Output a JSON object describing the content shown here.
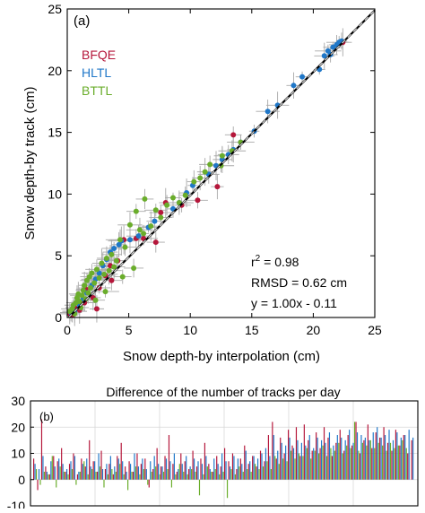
{
  "colors": {
    "BFQE": "#b5163a",
    "HLTL": "#1f77c8",
    "BTTL": "#6aad2b",
    "errorbar": "#a8a8a8",
    "fit": "#000000"
  },
  "chart_data": [
    {
      "type": "scatter",
      "panel_label": "(a)",
      "title": "",
      "xlabel": "Snow depth-by interpolation (cm)",
      "ylabel": "Snow depth-by track (cm)",
      "xlim": [
        0,
        25
      ],
      "ylim": [
        0,
        25
      ],
      "xticks": [
        0,
        5,
        10,
        15,
        20,
        25
      ],
      "yticks": [
        0,
        5,
        10,
        15,
        20,
        25
      ],
      "grid": false,
      "legend_position": "top-left",
      "fit_line": {
        "slope": 1.0,
        "intercept": -0.11,
        "style": "dashed black over solid black"
      },
      "stats": {
        "r2_prefix": "r",
        "r2_exp": "2",
        "r2_value": " = 0.98",
        "rmsd": "RMSD = 0.62 cm",
        "equation": "y = 1.00x - 0.11"
      },
      "series": [
        {
          "name": "BFQE",
          "color": "#b5163a",
          "points": [
            [
              0.2,
              0.3
            ],
            [
              0.4,
              0.2
            ],
            [
              0.6,
              0.8
            ],
            [
              1.0,
              0.6
            ],
            [
              1.4,
              1.2
            ],
            [
              2.1,
              1.6
            ],
            [
              2.6,
              2.4
            ],
            [
              3.1,
              3.4
            ],
            [
              3.5,
              4.2
            ],
            [
              3.6,
              3.0
            ],
            [
              4.1,
              4.6
            ],
            [
              4.6,
              6.3
            ],
            [
              5.6,
              6.4
            ],
            [
              6.2,
              6.4
            ],
            [
              7.2,
              6.1
            ],
            [
              7.6,
              8.5
            ],
            [
              8.0,
              9.3
            ],
            [
              9.3,
              9.1
            ],
            [
              10.6,
              9.5
            ],
            [
              12.2,
              10.6
            ],
            [
              13.5,
              14.8
            ],
            [
              22.4,
              22.3
            ],
            [
              2.4,
              0.7
            ],
            [
              1.5,
              2.3
            ]
          ]
        },
        {
          "name": "HLTL",
          "color": "#1f77c8",
          "points": [
            [
              0.3,
              0.4
            ],
            [
              0.6,
              0.5
            ],
            [
              1.0,
              1.0
            ],
            [
              1.3,
              1.5
            ],
            [
              1.6,
              2.0
            ],
            [
              2.0,
              2.6
            ],
            [
              2.3,
              3.1
            ],
            [
              2.6,
              3.6
            ],
            [
              2.9,
              4.2
            ],
            [
              3.2,
              4.7
            ],
            [
              3.5,
              5.3
            ],
            [
              3.8,
              5.6
            ],
            [
              4.2,
              5.9
            ],
            [
              4.4,
              6.2
            ],
            [
              5.1,
              6.3
            ],
            [
              5.8,
              6.6
            ],
            [
              6.6,
              7.3
            ],
            [
              7.1,
              7.8
            ],
            [
              8.6,
              8.8
            ],
            [
              9.1,
              9.3
            ],
            [
              9.7,
              10.1
            ],
            [
              10.2,
              10.7
            ],
            [
              11.5,
              11.6
            ],
            [
              12.1,
              12.3
            ],
            [
              12.6,
              12.8
            ],
            [
              13.1,
              13.2
            ],
            [
              13.5,
              13.6
            ],
            [
              14.1,
              14.2
            ],
            [
              15.2,
              15.1
            ],
            [
              16.3,
              16.7
            ],
            [
              17.1,
              17.2
            ],
            [
              18.4,
              18.8
            ],
            [
              19.1,
              19.5
            ],
            [
              20.5,
              20.1
            ],
            [
              20.9,
              21.2
            ],
            [
              21.2,
              21.6
            ],
            [
              21.6,
              21.9
            ],
            [
              21.9,
              22.1
            ],
            [
              22.3,
              22.4
            ],
            [
              21.4,
              21.3
            ],
            [
              22.1,
              22.3
            ]
          ]
        },
        {
          "name": "BTTL",
          "color": "#6aad2b",
          "points": [
            [
              0.2,
              0.5
            ],
            [
              0.4,
              0.7
            ],
            [
              0.5,
              1.0
            ],
            [
              0.7,
              1.2
            ],
            [
              0.8,
              1.6
            ],
            [
              0.9,
              1.9
            ],
            [
              1.0,
              1.3
            ],
            [
              1.2,
              1.8
            ],
            [
              1.3,
              2.2
            ],
            [
              1.4,
              2.6
            ],
            [
              1.5,
              1.5
            ],
            [
              1.6,
              3.0
            ],
            [
              1.7,
              2.0
            ],
            [
              1.8,
              3.3
            ],
            [
              1.9,
              2.4
            ],
            [
              2.0,
              3.6
            ],
            [
              2.2,
              2.8
            ],
            [
              2.4,
              3.9
            ],
            [
              2.6,
              3.2
            ],
            [
              2.8,
              4.4
            ],
            [
              3.0,
              3.5
            ],
            [
              3.2,
              4.8
            ],
            [
              3.4,
              3.8
            ],
            [
              3.6,
              5.1
            ],
            [
              3.8,
              4.1
            ],
            [
              4.0,
              4.6
            ],
            [
              4.3,
              6.3
            ],
            [
              4.7,
              5.7
            ],
            [
              5.1,
              7.5
            ],
            [
              5.4,
              4.0
            ],
            [
              5.9,
              7.1
            ],
            [
              6.2,
              6.8
            ],
            [
              6.8,
              7.4
            ],
            [
              7.2,
              8.7
            ],
            [
              7.6,
              8.1
            ],
            [
              8.1,
              9.1
            ],
            [
              8.6,
              9.7
            ],
            [
              9.1,
              9.3
            ],
            [
              9.6,
              9.9
            ],
            [
              10.3,
              11.0
            ],
            [
              10.8,
              11.3
            ],
            [
              11.2,
              11.8
            ],
            [
              11.6,
              12.4
            ],
            [
              12.5,
              12.3
            ],
            [
              12.6,
              13.1
            ],
            [
              13.4,
              13.5
            ],
            [
              14.1,
              14.2
            ],
            [
              5.6,
              8.6
            ],
            [
              6.3,
              9.6
            ],
            [
              1.1,
              0.8
            ],
            [
              0.6,
              0.3
            ],
            [
              2.3,
              1.4
            ],
            [
              3.1,
              2.1
            ],
            [
              4.5,
              3.3
            ]
          ]
        }
      ]
    },
    {
      "type": "bar",
      "panel_label": "(b)",
      "title": "Difference of the number of tracks per day",
      "xlabel": "",
      "ylabel": "",
      "ylim": [
        -10,
        30
      ],
      "yticks": [
        -10,
        0,
        10,
        20,
        30
      ],
      "grid": true,
      "day_count": 96,
      "series": [
        {
          "name": "BFQE",
          "color": "#b5163a",
          "values": [
            8,
            -4,
            23,
            5,
            2,
            9,
            7,
            12,
            3,
            6,
            10,
            2,
            8,
            5,
            15,
            7,
            3,
            11,
            4,
            6,
            2,
            9,
            14,
            5,
            7,
            3,
            10,
            6,
            8,
            -3,
            4,
            12,
            5,
            9,
            17,
            6,
            3,
            10,
            7,
            4,
            11,
            5,
            8,
            14,
            6,
            3,
            9,
            5,
            12,
            7,
            10,
            4,
            8,
            13,
            6,
            9,
            5,
            11,
            7,
            17,
            22,
            8,
            16,
            10,
            19,
            13,
            20,
            9,
            21,
            15,
            11,
            18,
            12,
            20,
            16,
            9,
            14,
            19,
            11,
            17,
            13,
            22,
            10,
            15,
            21,
            12,
            18,
            16,
            20,
            14,
            11,
            19,
            13,
            17,
            10,
            15
          ]
        },
        {
          "name": "HLTL",
          "color": "#1f77c8",
          "values": [
            6,
            4,
            9,
            3,
            7,
            5,
            8,
            6,
            4,
            7,
            9,
            3,
            6,
            8,
            5,
            7,
            10,
            4,
            6,
            9,
            5,
            8,
            7,
            3,
            6,
            10,
            5,
            8,
            4,
            7,
            9,
            6,
            5,
            8,
            7,
            10,
            4,
            6,
            9,
            5,
            8,
            7,
            6,
            9,
            4,
            8,
            6,
            10,
            7,
            5,
            9,
            8,
            6,
            11,
            7,
            9,
            8,
            10,
            12,
            9,
            17,
            11,
            14,
            13,
            16,
            12,
            15,
            14,
            13,
            17,
            12,
            16,
            15,
            14,
            18,
            13,
            17,
            16,
            15,
            19,
            14,
            18,
            17,
            16,
            15,
            18,
            20,
            16,
            17,
            19,
            15,
            18,
            16,
            17,
            19,
            16
          ]
        },
        {
          "name": "BTTL",
          "color": "#6aad2b",
          "values": [
            4,
            -2,
            3,
            2,
            9,
            -3,
            5,
            3,
            2,
            4,
            -2,
            3,
            7,
            2,
            4,
            3,
            5,
            -3,
            2,
            4,
            3,
            6,
            2,
            -4,
            3,
            5,
            2,
            4,
            -2,
            3,
            5,
            2,
            3,
            4,
            -3,
            2,
            6,
            3,
            2,
            4,
            3,
            -6,
            2,
            5,
            3,
            4,
            2,
            3,
            -7,
            4,
            2,
            5,
            3,
            4,
            3,
            6,
            4,
            5,
            7,
            4,
            9,
            6,
            8,
            7,
            11,
            8,
            10,
            9,
            12,
            8,
            11,
            10,
            13,
            9,
            12,
            11,
            14,
            10,
            13,
            12,
            22,
            11,
            14,
            13,
            15,
            12,
            14,
            13,
            11,
            14,
            12,
            13,
            15,
            12
          ]
        }
      ]
    }
  ]
}
